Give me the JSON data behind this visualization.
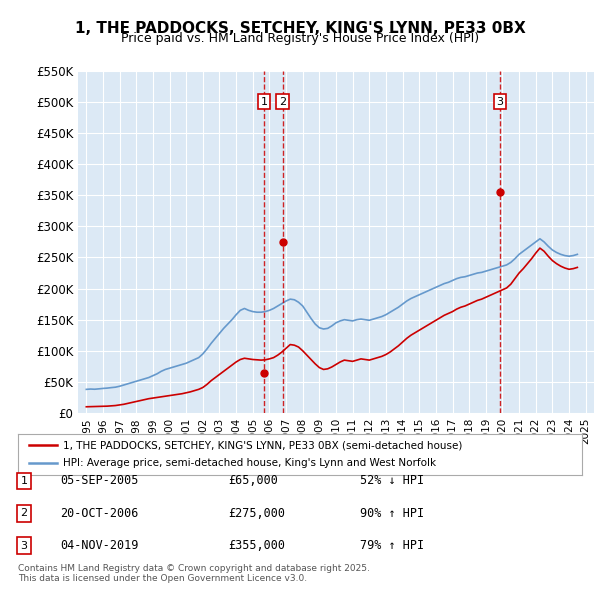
{
  "title": "1, THE PADDOCKS, SETCHEY, KING'S LYNN, PE33 0BX",
  "subtitle": "Price paid vs. HM Land Registry's House Price Index (HPI)",
  "ylabel_ticks": [
    "£0",
    "£50K",
    "£100K",
    "£150K",
    "£200K",
    "£250K",
    "£300K",
    "£350K",
    "£400K",
    "£450K",
    "£500K",
    "£550K"
  ],
  "ylim": [
    0,
    550000
  ],
  "yticks": [
    0,
    50000,
    100000,
    150000,
    200000,
    250000,
    300000,
    350000,
    400000,
    450000,
    500000,
    550000
  ],
  "background_color": "#dce9f5",
  "plot_bg_color": "#dce9f5",
  "red_line_color": "#cc0000",
  "blue_line_color": "#6699cc",
  "transaction_marker_color": "#cc0000",
  "dashed_line_color": "#cc0000",
  "legend_label_red": "1, THE PADDOCKS, SETCHEY, KING'S LYNN, PE33 0BX (semi-detached house)",
  "legend_label_blue": "HPI: Average price, semi-detached house, King's Lynn and West Norfolk",
  "transactions": [
    {
      "num": 1,
      "date": "05-SEP-2005",
      "price": 65000,
      "pct": "52%",
      "dir": "↓",
      "x_year": 2005.68
    },
    {
      "num": 2,
      "date": "20-OCT-2006",
      "price": 275000,
      "pct": "90%",
      "dir": "↑",
      "x_year": 2006.8
    },
    {
      "num": 3,
      "date": "04-NOV-2019",
      "price": 355000,
      "pct": "79%",
      "dir": "↑",
      "x_year": 2019.84
    }
  ],
  "footer": "Contains HM Land Registry data © Crown copyright and database right 2025.\nThis data is licensed under the Open Government Licence v3.0.",
  "hpi_data": {
    "x": [
      1995.0,
      1995.25,
      1995.5,
      1995.75,
      1996.0,
      1996.25,
      1996.5,
      1996.75,
      1997.0,
      1997.25,
      1997.5,
      1997.75,
      1998.0,
      1998.25,
      1998.5,
      1998.75,
      1999.0,
      1999.25,
      1999.5,
      1999.75,
      2000.0,
      2000.25,
      2000.5,
      2000.75,
      2001.0,
      2001.25,
      2001.5,
      2001.75,
      2002.0,
      2002.25,
      2002.5,
      2002.75,
      2003.0,
      2003.25,
      2003.5,
      2003.75,
      2004.0,
      2004.25,
      2004.5,
      2004.75,
      2005.0,
      2005.25,
      2005.5,
      2005.75,
      2006.0,
      2006.25,
      2006.5,
      2006.75,
      2007.0,
      2007.25,
      2007.5,
      2007.75,
      2008.0,
      2008.25,
      2008.5,
      2008.75,
      2009.0,
      2009.25,
      2009.5,
      2009.75,
      2010.0,
      2010.25,
      2010.5,
      2010.75,
      2011.0,
      2011.25,
      2011.5,
      2011.75,
      2012.0,
      2012.25,
      2012.5,
      2012.75,
      2013.0,
      2013.25,
      2013.5,
      2013.75,
      2014.0,
      2014.25,
      2014.5,
      2014.75,
      2015.0,
      2015.25,
      2015.5,
      2015.75,
      2016.0,
      2016.25,
      2016.5,
      2016.75,
      2017.0,
      2017.25,
      2017.5,
      2017.75,
      2018.0,
      2018.25,
      2018.5,
      2018.75,
      2019.0,
      2019.25,
      2019.5,
      2019.75,
      2020.0,
      2020.25,
      2020.5,
      2020.75,
      2021.0,
      2021.25,
      2021.5,
      2021.75,
      2022.0,
      2022.25,
      2022.5,
      2022.75,
      2023.0,
      2023.25,
      2023.5,
      2023.75,
      2024.0,
      2024.25,
      2024.5
    ],
    "y": [
      38000,
      38500,
      38200,
      38800,
      39500,
      40000,
      40800,
      41500,
      43000,
      45000,
      47000,
      49000,
      51000,
      53000,
      55000,
      57000,
      60000,
      63000,
      67000,
      70000,
      72000,
      74000,
      76000,
      78000,
      80000,
      83000,
      86000,
      89000,
      95000,
      103000,
      112000,
      120000,
      128000,
      136000,
      143000,
      150000,
      158000,
      165000,
      168000,
      165000,
      163000,
      162000,
      162000,
      163000,
      165000,
      168000,
      172000,
      176000,
      180000,
      183000,
      182000,
      178000,
      172000,
      162000,
      152000,
      143000,
      137000,
      135000,
      136000,
      140000,
      145000,
      148000,
      150000,
      149000,
      148000,
      150000,
      151000,
      150000,
      149000,
      151000,
      153000,
      155000,
      158000,
      162000,
      166000,
      170000,
      175000,
      180000,
      184000,
      187000,
      190000,
      193000,
      196000,
      199000,
      202000,
      205000,
      208000,
      210000,
      213000,
      216000,
      218000,
      219000,
      221000,
      223000,
      225000,
      226000,
      228000,
      230000,
      232000,
      234000,
      236000,
      238000,
      242000,
      248000,
      255000,
      260000,
      265000,
      270000,
      275000,
      280000,
      275000,
      268000,
      262000,
      258000,
      255000,
      253000,
      252000,
      253000,
      255000
    ]
  },
  "price_data": {
    "x": [
      1995.0,
      1995.25,
      1995.5,
      1995.75,
      1996.0,
      1996.25,
      1996.5,
      1996.75,
      1997.0,
      1997.25,
      1997.5,
      1997.75,
      1998.0,
      1998.25,
      1998.5,
      1998.75,
      1999.0,
      1999.25,
      1999.5,
      1999.75,
      2000.0,
      2000.25,
      2000.5,
      2000.75,
      2001.0,
      2001.25,
      2001.5,
      2001.75,
      2002.0,
      2002.25,
      2002.5,
      2002.75,
      2003.0,
      2003.25,
      2003.5,
      2003.75,
      2004.0,
      2004.25,
      2004.5,
      2004.75,
      2005.0,
      2005.25,
      2005.5,
      2005.75,
      2006.0,
      2006.25,
      2006.5,
      2006.75,
      2007.0,
      2007.25,
      2007.5,
      2007.75,
      2008.0,
      2008.25,
      2008.5,
      2008.75,
      2009.0,
      2009.25,
      2009.5,
      2009.75,
      2010.0,
      2010.25,
      2010.5,
      2010.75,
      2011.0,
      2011.25,
      2011.5,
      2011.75,
      2012.0,
      2012.25,
      2012.5,
      2012.75,
      2013.0,
      2013.25,
      2013.5,
      2013.75,
      2014.0,
      2014.25,
      2014.5,
      2014.75,
      2015.0,
      2015.25,
      2015.5,
      2015.75,
      2016.0,
      2016.25,
      2016.5,
      2016.75,
      2017.0,
      2017.25,
      2017.5,
      2017.75,
      2018.0,
      2018.25,
      2018.5,
      2018.75,
      2019.0,
      2019.25,
      2019.5,
      2019.75,
      2020.0,
      2020.25,
      2020.5,
      2020.75,
      2021.0,
      2021.25,
      2021.5,
      2021.75,
      2022.0,
      2022.25,
      2022.5,
      2022.75,
      2023.0,
      2023.25,
      2023.5,
      2023.75,
      2024.0,
      2024.25,
      2024.5
    ],
    "y": [
      10000,
      10200,
      10400,
      10600,
      10800,
      11000,
      11500,
      12000,
      13000,
      14000,
      15500,
      17000,
      18500,
      20000,
      21500,
      23000,
      24000,
      25000,
      26000,
      27000,
      28000,
      29000,
      30000,
      31000,
      32500,
      34000,
      36000,
      38000,
      41000,
      46000,
      52000,
      57000,
      62000,
      67000,
      72000,
      77000,
      82000,
      86000,
      88000,
      87000,
      86000,
      85500,
      85000,
      85500,
      87000,
      89000,
      93000,
      98000,
      104000,
      110000,
      109000,
      106000,
      100000,
      93000,
      86000,
      79000,
      73000,
      70000,
      71000,
      74000,
      78000,
      82000,
      85000,
      84000,
      83000,
      85000,
      87000,
      86000,
      85000,
      87000,
      89000,
      91000,
      94000,
      98000,
      103000,
      108000,
      114000,
      120000,
      125000,
      129000,
      133000,
      137000,
      141000,
      145000,
      149000,
      153000,
      157000,
      160000,
      163000,
      167000,
      170000,
      172000,
      175000,
      178000,
      181000,
      183000,
      186000,
      189000,
      192000,
      195000,
      198000,
      201000,
      207000,
      216000,
      225000,
      232000,
      240000,
      248000,
      257000,
      265000,
      260000,
      252000,
      245000,
      240000,
      236000,
      233000,
      231000,
      232000,
      234000
    ]
  },
  "xlim": [
    1994.5,
    2025.5
  ],
  "xticks": [
    1995,
    1996,
    1997,
    1998,
    1999,
    2000,
    2001,
    2002,
    2003,
    2004,
    2005,
    2006,
    2007,
    2008,
    2009,
    2010,
    2011,
    2012,
    2013,
    2014,
    2015,
    2016,
    2017,
    2018,
    2019,
    2020,
    2021,
    2022,
    2023,
    2024,
    2025
  ]
}
